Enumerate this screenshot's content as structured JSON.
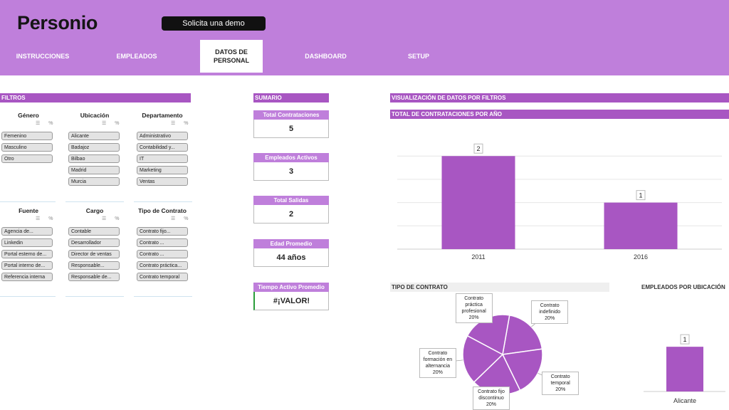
{
  "header": {
    "logo": "Personio",
    "demo_button": "Solicita una demo",
    "tabs": [
      {
        "label": "INSTRUCCIONES"
      },
      {
        "label": "EMPLEADOS"
      },
      {
        "label": "DATOS DE PERSONAL"
      },
      {
        "label": "DASHBOARD"
      },
      {
        "label": "SETUP"
      }
    ],
    "active_tab": "DATOS DE PERSONAL"
  },
  "filters": {
    "title": "FILTROS",
    "groups": [
      {
        "title": "Género",
        "items": [
          "Femenino",
          "Masculino",
          "Otro"
        ]
      },
      {
        "title": "Ubicación",
        "items": [
          "Alicante",
          "Badajoz",
          "Bilbao",
          "Madrid",
          "Murcia"
        ]
      },
      {
        "title": "Departamento",
        "items": [
          "Administrativo",
          "Contabilidad y...",
          "IT",
          "Marketing",
          "Ventas"
        ]
      },
      {
        "title": "Fuente",
        "items": [
          "Agencia de...",
          "Linkedin",
          "Portal esterno de...",
          "Portal interno de...",
          "Referencia interna"
        ]
      },
      {
        "title": "Cargo",
        "items": [
          "Contable",
          "Desarrollador",
          "Director de ventas",
          "Responsable...",
          "Responsable de..."
        ]
      },
      {
        "title": "Tipo de Contrato",
        "items": [
          "Contrato fijo...",
          "Contrato ...",
          "Contrato ...",
          "Contrato práctica...",
          "Contrato temporal"
        ]
      }
    ]
  },
  "summary": {
    "title": "SUMARIO",
    "cards": [
      {
        "label": "Total Contrataciones",
        "value": "5"
      },
      {
        "label": "Empleados Activos",
        "value": "3"
      },
      {
        "label": "Total Salidas",
        "value": "2"
      },
      {
        "label": "Edad Promedio",
        "value": "44 años"
      },
      {
        "label": "Tiempo Activo Promedio",
        "value": "#¡VALOR!"
      }
    ]
  },
  "visualization": {
    "title": "VISUALIZACIÓN DE DATOS POR FILTROS",
    "hires_title": "TOTAL DE CONTRATACIONES POR AÑO",
    "contract_title": "TIPO DE CONTRATO",
    "location_title": "EMPLEADOS POR UBICACIÓN"
  },
  "colors": {
    "header": "#bf7fdb",
    "accent": "#a856c2",
    "bar": "#a856c2"
  },
  "chart_data": [
    {
      "type": "bar",
      "title": "TOTAL DE CONTRATACIONES POR AÑO",
      "categories": [
        "2011",
        "2016"
      ],
      "values": [
        2,
        1
      ],
      "ylim": [
        0,
        2.6
      ],
      "grid": true
    },
    {
      "type": "pie",
      "title": "TIPO DE CONTRATO",
      "categories": [
        "Contrato indefinido",
        "Contrato temporal",
        "Contrato fijo discontinuo",
        "Contrato formación en alternancia",
        "Contrato práctica profesional"
      ],
      "values": [
        20,
        20,
        20,
        20,
        20
      ],
      "labels": [
        [
          "Contrato",
          "indefinido",
          "20%"
        ],
        [
          "Contrato",
          "temporal",
          "20%"
        ],
        [
          "Contrato fijo",
          "discontinuo",
          "20%"
        ],
        [
          "Contrato",
          "formación en",
          "alternancia",
          "20%"
        ],
        [
          "Contrato",
          "práctica",
          "profesional",
          "20%"
        ]
      ]
    },
    {
      "type": "bar",
      "title": "EMPLEADOS POR UBICACIÓN",
      "categories": [
        "Alicante"
      ],
      "values": [
        1
      ],
      "ylim": [
        0,
        1.4
      ]
    }
  ]
}
